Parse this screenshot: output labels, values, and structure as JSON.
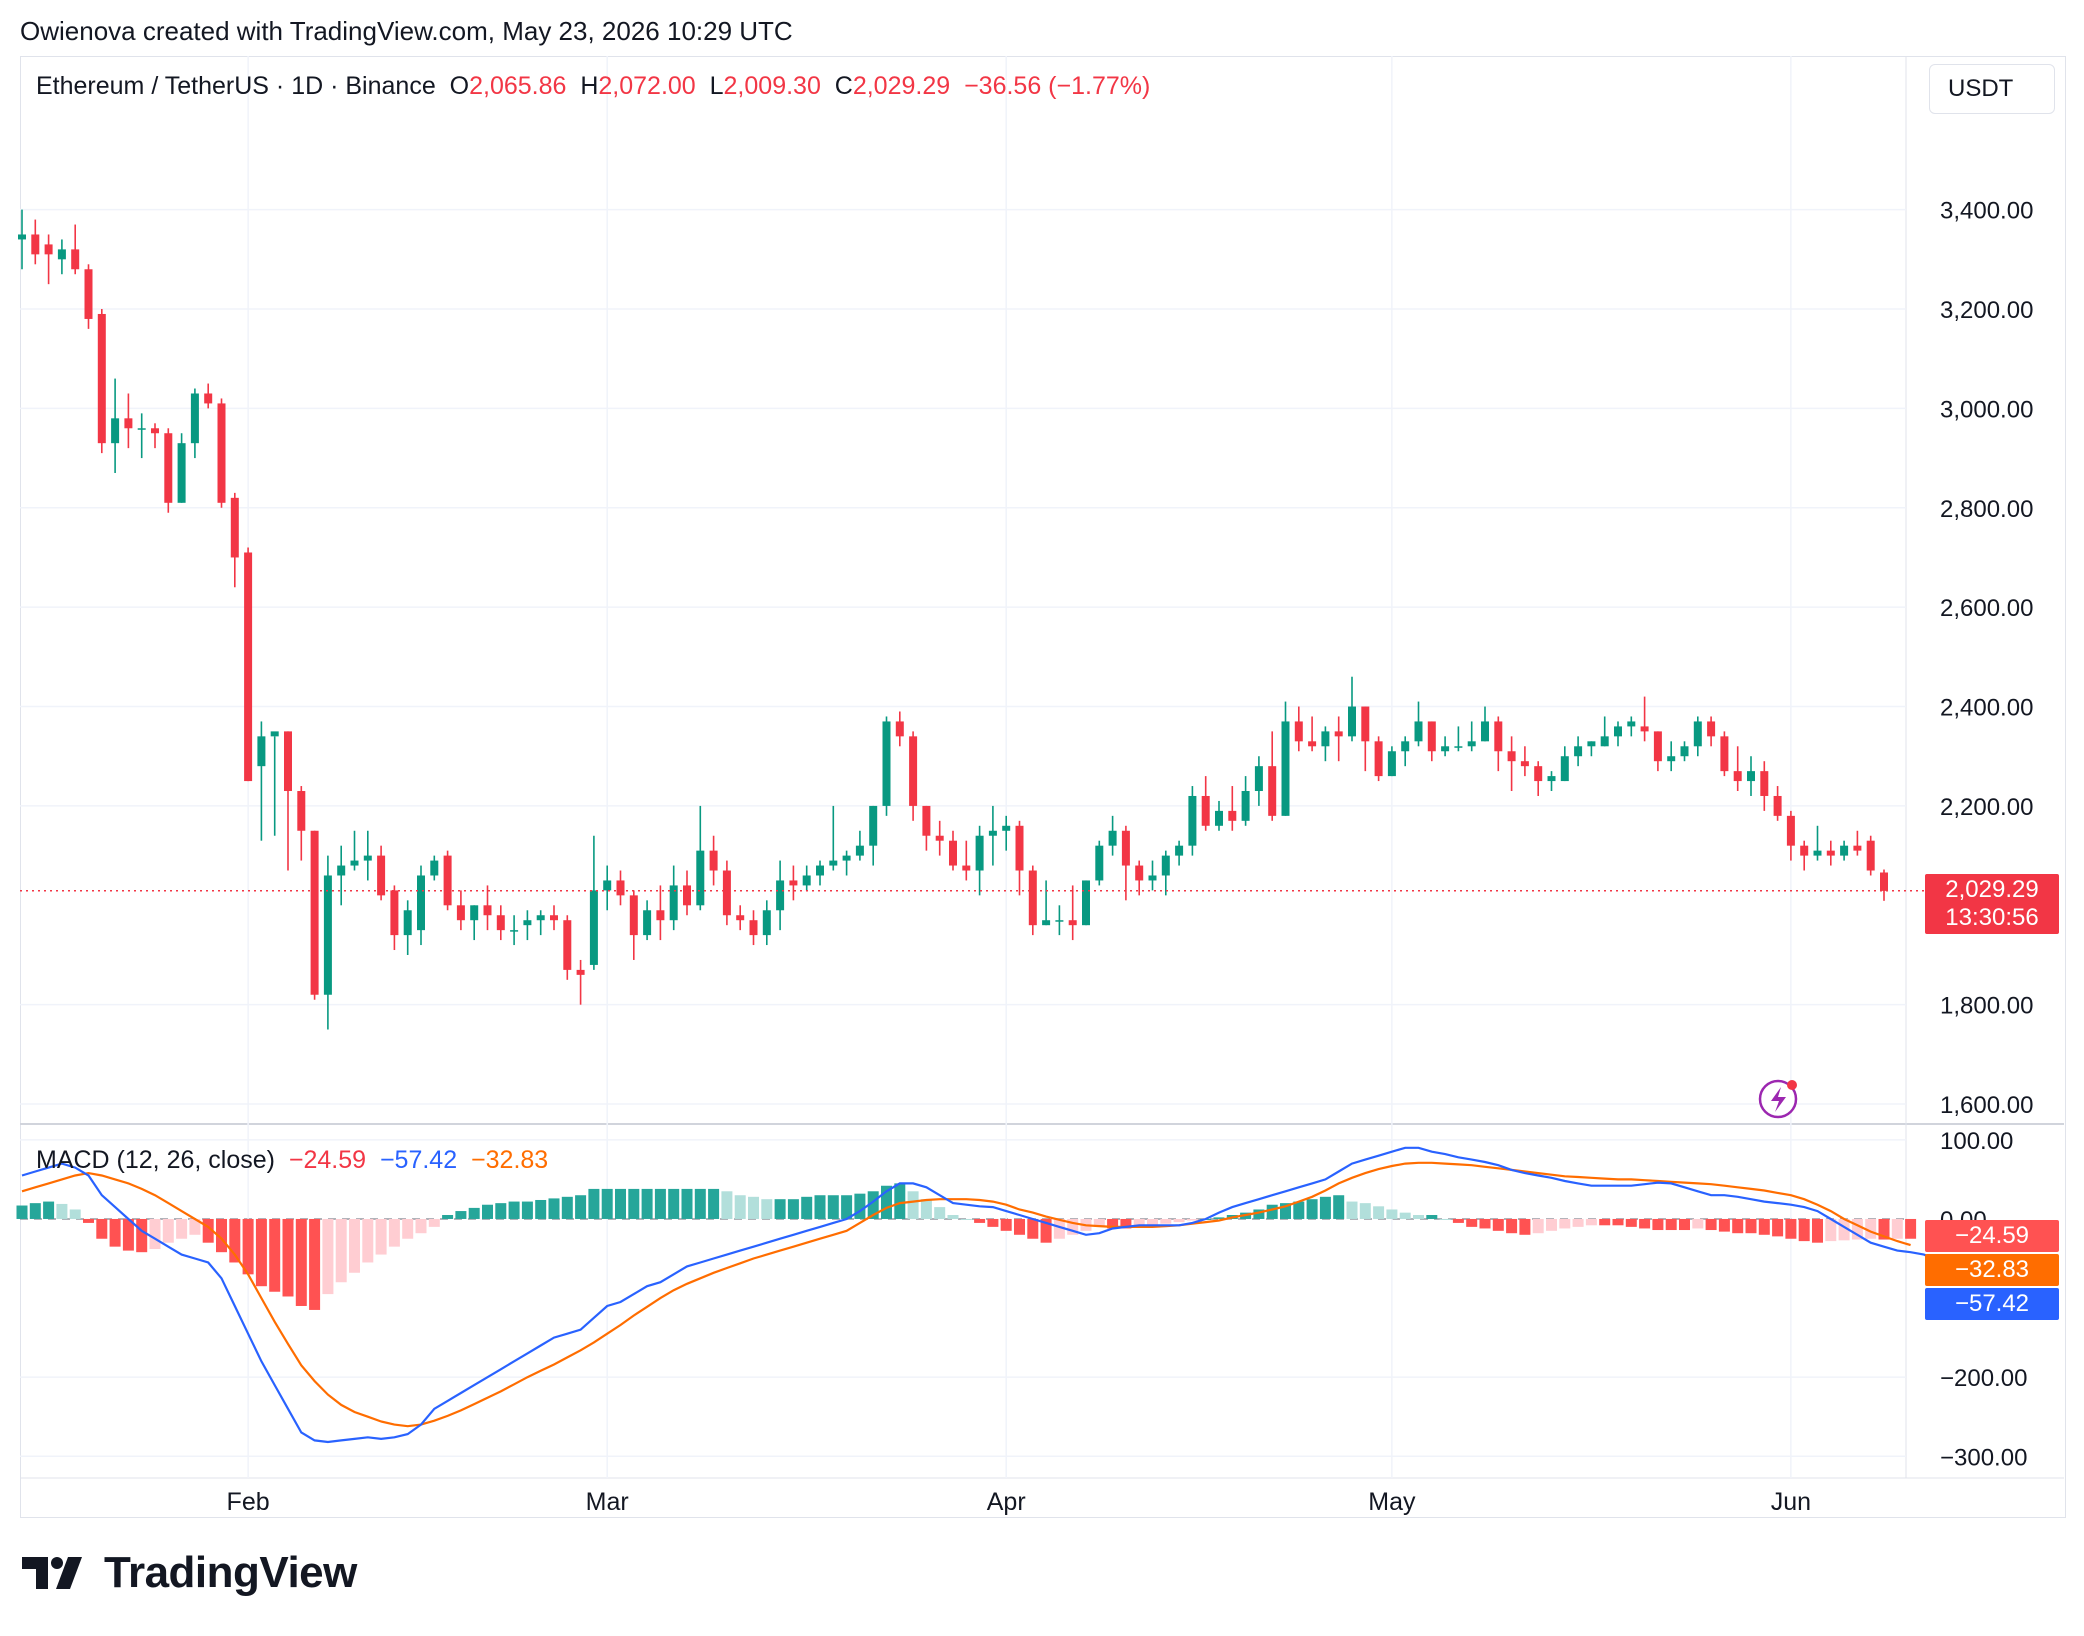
{
  "header": {
    "text": "Owienova created with TradingView.com, May 23, 2026 10:29 UTC"
  },
  "symbol": {
    "name": "Ethereum / TetherUS · 1D · Binance",
    "o_label": "O",
    "o": "2,065.86",
    "h_label": "H",
    "h": "2,072.00",
    "l_label": "L",
    "l": "2,009.30",
    "c_label": "C",
    "c": "2,029.29",
    "change": "−36.56 (−1.77%)"
  },
  "currency_button": "USDT",
  "macd_legend": {
    "label": "MACD (12, 26, close)",
    "hist": "−24.59",
    "macd": "−57.42",
    "signal": "−32.83"
  },
  "last_price": {
    "price": "2,029.29",
    "countdown": "13:30:56"
  },
  "macd_tags": {
    "hist": "−24.59",
    "signal": "−32.83",
    "macd": "−57.42"
  },
  "footer": {
    "brand": "TradingView"
  },
  "colors": {
    "up": "#089981",
    "down": "#f23645",
    "macd": "#2962ff",
    "signal": "#ff6d00",
    "hist_up_strong": "#26a69a",
    "hist_up_weak": "#b2dfdb",
    "hist_dn_strong": "#ff5252",
    "hist_dn_weak": "#ffcdd2"
  },
  "chart_data": [
    {
      "type": "candlestick",
      "title": "Ethereum / TetherUS · 1D · Binance",
      "ylim": [
        1580,
        3520
      ],
      "y_ticks": [
        "3,400.00",
        "3,200.00",
        "3,000.00",
        "2,800.00",
        "2,600.00",
        "2,400.00",
        "2,200.00",
        "1,800.00",
        "1,600.00"
      ],
      "y_tick_values": [
        3400,
        3200,
        3000,
        2800,
        2600,
        2400,
        2200,
        1800,
        1600
      ],
      "x_ticks": [
        "Feb",
        "Mar",
        "Apr",
        "May",
        "Jun"
      ],
      "x_tick_days": [
        17,
        44,
        74,
        103,
        133
      ],
      "day0": "2026-01-15",
      "last_price": 2029.29,
      "ohlc": [
        [
          3340,
          3400,
          3280,
          3350
        ],
        [
          3350,
          3380,
          3290,
          3310
        ],
        [
          3330,
          3350,
          3250,
          3310
        ],
        [
          3300,
          3340,
          3270,
          3320
        ],
        [
          3320,
          3370,
          3270,
          3280
        ],
        [
          3280,
          3290,
          3160,
          3180
        ],
        [
          3190,
          3200,
          2910,
          2930
        ],
        [
          2930,
          3060,
          2870,
          2980
        ],
        [
          2980,
          3030,
          2920,
          2960
        ],
        [
          2960,
          2990,
          2900,
          2960
        ],
        [
          2960,
          2970,
          2920,
          2950
        ],
        [
          2950,
          2960,
          2790,
          2810
        ],
        [
          2810,
          2950,
          2810,
          2930
        ],
        [
          2930,
          3040,
          2900,
          3030
        ],
        [
          3030,
          3050,
          3000,
          3010
        ],
        [
          3010,
          3020,
          2800,
          2810
        ],
        [
          2820,
          2830,
          2640,
          2700
        ],
        [
          2710,
          2720,
          2250,
          2250
        ],
        [
          2280,
          2370,
          2130,
          2340
        ],
        [
          2340,
          2340,
          2140,
          2350
        ],
        [
          2350,
          2350,
          2070,
          2230
        ],
        [
          2230,
          2240,
          2090,
          2150
        ],
        [
          2150,
          2150,
          1810,
          1820
        ],
        [
          1820,
          2100,
          1750,
          2060
        ],
        [
          2060,
          2120,
          2000,
          2080
        ],
        [
          2080,
          2150,
          2070,
          2090
        ],
        [
          2090,
          2150,
          2050,
          2100
        ],
        [
          2100,
          2120,
          2010,
          2020
        ],
        [
          2030,
          2040,
          1910,
          1940
        ],
        [
          1940,
          2010,
          1900,
          1990
        ],
        [
          1950,
          2080,
          1920,
          2060
        ],
        [
          2060,
          2100,
          2050,
          2090
        ],
        [
          2100,
          2110,
          1990,
          2000
        ],
        [
          2000,
          2030,
          1950,
          1970
        ],
        [
          1970,
          2000,
          1930,
          2000
        ],
        [
          2000,
          2040,
          1950,
          1980
        ],
        [
          1980,
          2000,
          1930,
          1950
        ],
        [
          1950,
          1980,
          1920,
          1950
        ],
        [
          1960,
          1990,
          1930,
          1970
        ],
        [
          1970,
          1990,
          1940,
          1980
        ],
        [
          1980,
          2000,
          1950,
          1970
        ],
        [
          1970,
          1980,
          1850,
          1870
        ],
        [
          1870,
          1890,
          1800,
          1860
        ],
        [
          1880,
          2140,
          1870,
          2030
        ],
        [
          2030,
          2080,
          1990,
          2050
        ],
        [
          2050,
          2070,
          2000,
          2020
        ],
        [
          2020,
          2030,
          1890,
          1940
        ],
        [
          1940,
          2010,
          1930,
          1990
        ],
        [
          1990,
          2040,
          1930,
          1970
        ],
        [
          1970,
          2080,
          1950,
          2040
        ],
        [
          2040,
          2070,
          1980,
          2000
        ],
        [
          2000,
          2200,
          1990,
          2110
        ],
        [
          2110,
          2140,
          2040,
          2070
        ],
        [
          2070,
          2090,
          1960,
          1980
        ],
        [
          1980,
          2000,
          1950,
          1970
        ],
        [
          1970,
          1990,
          1920,
          1940
        ],
        [
          1940,
          2010,
          1920,
          1990
        ],
        [
          1990,
          2090,
          1950,
          2050
        ],
        [
          2050,
          2080,
          2010,
          2040
        ],
        [
          2040,
          2080,
          2030,
          2060
        ],
        [
          2060,
          2090,
          2040,
          2080
        ],
        [
          2080,
          2200,
          2070,
          2090
        ],
        [
          2090,
          2110,
          2060,
          2100
        ],
        [
          2100,
          2150,
          2090,
          2120
        ],
        [
          2120,
          2200,
          2080,
          2200
        ],
        [
          2200,
          2380,
          2180,
          2370
        ],
        [
          2370,
          2390,
          2320,
          2340
        ],
        [
          2340,
          2350,
          2170,
          2200
        ],
        [
          2200,
          2200,
          2110,
          2140
        ],
        [
          2140,
          2170,
          2100,
          2130
        ],
        [
          2130,
          2150,
          2070,
          2080
        ],
        [
          2080,
          2130,
          2050,
          2070
        ],
        [
          2070,
          2160,
          2020,
          2140
        ],
        [
          2140,
          2200,
          2080,
          2150
        ],
        [
          2150,
          2180,
          2110,
          2160
        ],
        [
          2160,
          2170,
          2020,
          2070
        ],
        [
          2070,
          2080,
          1940,
          1960
        ],
        [
          1960,
          2050,
          1960,
          1970
        ],
        [
          1970,
          2000,
          1940,
          1970
        ],
        [
          1970,
          2040,
          1930,
          1960
        ],
        [
          1960,
          2050,
          1960,
          2050
        ],
        [
          2050,
          2130,
          2040,
          2120
        ],
        [
          2120,
          2180,
          2100,
          2150
        ],
        [
          2150,
          2160,
          2010,
          2080
        ],
        [
          2080,
          2090,
          2020,
          2050
        ],
        [
          2050,
          2090,
          2030,
          2060
        ],
        [
          2060,
          2110,
          2020,
          2100
        ],
        [
          2100,
          2130,
          2080,
          2120
        ],
        [
          2120,
          2240,
          2100,
          2220
        ],
        [
          2220,
          2260,
          2150,
          2160
        ],
        [
          2160,
          2210,
          2150,
          2190
        ],
        [
          2190,
          2240,
          2150,
          2170
        ],
        [
          2170,
          2260,
          2160,
          2230
        ],
        [
          2230,
          2300,
          2200,
          2280
        ],
        [
          2280,
          2350,
          2170,
          2180
        ],
        [
          2180,
          2410,
          2180,
          2370
        ],
        [
          2370,
          2400,
          2310,
          2330
        ],
        [
          2330,
          2380,
          2310,
          2320
        ],
        [
          2320,
          2360,
          2290,
          2350
        ],
        [
          2350,
          2380,
          2290,
          2340
        ],
        [
          2340,
          2460,
          2330,
          2400
        ],
        [
          2400,
          2400,
          2270,
          2330
        ],
        [
          2330,
          2340,
          2250,
          2260
        ],
        [
          2260,
          2320,
          2260,
          2310
        ],
        [
          2310,
          2340,
          2280,
          2330
        ],
        [
          2330,
          2410,
          2320,
          2370
        ],
        [
          2370,
          2370,
          2290,
          2310
        ],
        [
          2310,
          2340,
          2300,
          2320
        ],
        [
          2320,
          2360,
          2310,
          2320
        ],
        [
          2320,
          2370,
          2310,
          2330
        ],
        [
          2330,
          2400,
          2330,
          2370
        ],
        [
          2370,
          2380,
          2270,
          2310
        ],
        [
          2310,
          2340,
          2230,
          2290
        ],
        [
          2290,
          2320,
          2260,
          2280
        ],
        [
          2280,
          2290,
          2220,
          2250
        ],
        [
          2250,
          2270,
          2230,
          2260
        ],
        [
          2250,
          2320,
          2250,
          2300
        ],
        [
          2300,
          2340,
          2280,
          2320
        ],
        [
          2320,
          2330,
          2300,
          2330
        ],
        [
          2320,
          2380,
          2320,
          2340
        ],
        [
          2340,
          2370,
          2320,
          2360
        ],
        [
          2360,
          2380,
          2340,
          2370
        ],
        [
          2360,
          2420,
          2330,
          2350
        ],
        [
          2350,
          2350,
          2270,
          2290
        ],
        [
          2290,
          2330,
          2270,
          2300
        ],
        [
          2300,
          2330,
          2290,
          2320
        ],
        [
          2320,
          2380,
          2300,
          2370
        ],
        [
          2370,
          2380,
          2320,
          2340
        ],
        [
          2340,
          2350,
          2260,
          2270
        ],
        [
          2270,
          2320,
          2230,
          2250
        ],
        [
          2250,
          2300,
          2220,
          2270
        ],
        [
          2270,
          2290,
          2190,
          2220
        ],
        [
          2220,
          2240,
          2170,
          2180
        ],
        [
          2180,
          2190,
          2090,
          2120
        ],
        [
          2120,
          2130,
          2070,
          2100
        ],
        [
          2100,
          2160,
          2090,
          2110
        ],
        [
          2110,
          2130,
          2080,
          2100
        ],
        [
          2100,
          2130,
          2090,
          2120
        ],
        [
          2120,
          2150,
          2100,
          2110
        ],
        [
          2130,
          2140,
          2060,
          2070
        ],
        [
          2066,
          2072,
          2009,
          2029
        ]
      ]
    },
    {
      "type": "macd",
      "title": "MACD (12, 26, close)",
      "ylim": [
        -330,
        115
      ],
      "y_ticks": [
        "100.00",
        "0.00",
        "−200.00",
        "−300.00"
      ],
      "y_tick_values": [
        100,
        0,
        -200,
        -300
      ],
      "histogram": [
        17,
        20,
        22,
        19,
        12,
        -5,
        -25,
        -35,
        -40,
        -42,
        -38,
        -30,
        -25,
        -20,
        -30,
        -42,
        -55,
        -70,
        -85,
        -92,
        -98,
        -110,
        -115,
        -95,
        -80,
        -68,
        -55,
        -45,
        -35,
        -25,
        -18,
        -10,
        5,
        10,
        14,
        18,
        20,
        22,
        22,
        24,
        26,
        28,
        30,
        38,
        38,
        38,
        38,
        38,
        38,
        38,
        38,
        38,
        38,
        35,
        30,
        28,
        25,
        25,
        25,
        28,
        30,
        30,
        30,
        32,
        35,
        42,
        45,
        35,
        25,
        15,
        5,
        0,
        -5,
        -10,
        -15,
        -20,
        -25,
        -30,
        -25,
        -20,
        -15,
        -10,
        -12,
        -12,
        -10,
        -8,
        -6,
        -4,
        -2,
        0,
        2,
        5,
        8,
        12,
        18,
        20,
        22,
        25,
        28,
        30,
        22,
        20,
        16,
        12,
        8,
        5,
        5,
        0,
        -5,
        -10,
        -12,
        -15,
        -18,
        -20,
        -18,
        -15,
        -12,
        -10,
        -8,
        -8,
        -8,
        -10,
        -12,
        -14,
        -14,
        -14,
        -12,
        -14,
        -16,
        -18,
        -18,
        -20,
        -22,
        -25,
        -28,
        -30,
        -28,
        -27,
        -26,
        -25,
        -26,
        -25,
        -25
      ],
      "macd": [
        55,
        60,
        65,
        70,
        65,
        55,
        30,
        15,
        0,
        -15,
        -25,
        -35,
        -45,
        -50,
        -55,
        -75,
        -110,
        -145,
        -180,
        -210,
        -240,
        -270,
        -280,
        -282,
        -280,
        -278,
        -276,
        -278,
        -276,
        -272,
        -260,
        -240,
        -230,
        -220,
        -210,
        -200,
        -190,
        -180,
        -170,
        -160,
        -150,
        -145,
        -140,
        -125,
        -110,
        -105,
        -95,
        -85,
        -80,
        -70,
        -60,
        -55,
        -50,
        -45,
        -40,
        -35,
        -30,
        -25,
        -20,
        -15,
        -10,
        -5,
        0,
        10,
        22,
        35,
        45,
        45,
        40,
        30,
        20,
        18,
        16,
        15,
        10,
        5,
        0,
        -5,
        -10,
        -15,
        -20,
        -18,
        -12,
        -10,
        -8,
        -8,
        -8,
        -8,
        -5,
        0,
        8,
        15,
        20,
        25,
        30,
        35,
        40,
        45,
        50,
        60,
        70,
        75,
        80,
        85,
        90,
        90,
        85,
        82,
        78,
        75,
        72,
        68,
        62,
        58,
        55,
        52,
        48,
        45,
        42,
        42,
        42,
        42,
        44,
        46,
        45,
        40,
        35,
        30,
        30,
        28,
        25,
        22,
        20,
        18,
        15,
        10,
        0,
        -10,
        -20,
        -30,
        -35,
        -40,
        -42,
        -45,
        -52,
        -57
      ],
      "signal": [
        35,
        40,
        45,
        50,
        55,
        58,
        55,
        50,
        45,
        38,
        30,
        20,
        10,
        0,
        -10,
        -25,
        -45,
        -70,
        -100,
        -130,
        -158,
        -185,
        -205,
        -222,
        -235,
        -244,
        -250,
        -256,
        -260,
        -262,
        -260,
        -255,
        -249,
        -242,
        -234,
        -226,
        -218,
        -209,
        -200,
        -192,
        -184,
        -175,
        -166,
        -156,
        -145,
        -134,
        -122,
        -111,
        -100,
        -90,
        -82,
        -75,
        -68,
        -62,
        -56,
        -50,
        -45,
        -40,
        -35,
        -30,
        -25,
        -20,
        -15,
        -5,
        5,
        14,
        20,
        22,
        24,
        25,
        25,
        25,
        24,
        22,
        18,
        12,
        8,
        3,
        -1,
        -5,
        -8,
        -9,
        -10,
        -10,
        -10,
        -10,
        -9,
        -8,
        -6,
        -4,
        -2,
        2,
        5,
        8,
        12,
        16,
        22,
        28,
        36,
        45,
        52,
        58,
        63,
        67,
        70,
        71,
        71,
        70,
        69,
        68,
        66,
        64,
        62,
        60,
        58,
        56,
        54,
        53,
        52,
        51,
        50,
        50,
        49,
        48,
        47,
        46,
        45,
        44,
        42,
        40,
        38,
        36,
        33,
        30,
        25,
        18,
        10,
        0,
        -8,
        -16,
        -22,
        -28,
        -33
      ]
    }
  ]
}
